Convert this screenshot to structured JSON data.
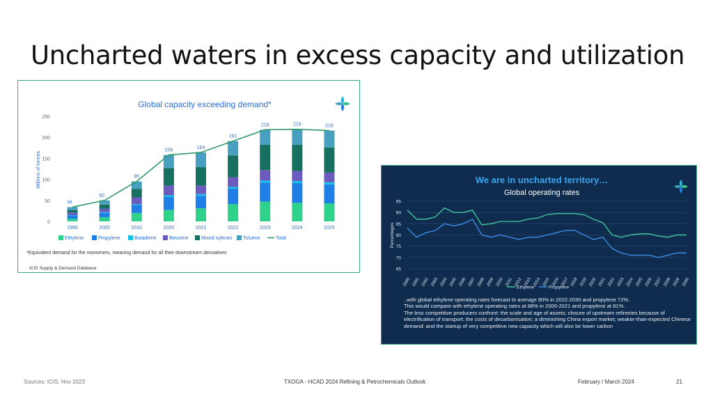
{
  "slide": {
    "title": "Uncharted waters in excess capacity and utilization",
    "footer_sources": "Sources: ICIS, Nov 2023",
    "footer_center": "TXOGA - HCAD 2024 Refining & Petrochemicals Outlook",
    "footer_date": "February / March 2024",
    "page_number": "21"
  },
  "chart_data": [
    {
      "type": "bar",
      "stacked": true,
      "title": "Global capacity exceeding demand*",
      "ylabel": "Millions of tonnes",
      "ylim": [
        0,
        250
      ],
      "yticks": [
        0,
        50,
        100,
        150,
        200,
        250
      ],
      "categories": [
        "1990",
        "2000",
        "2010",
        "2020",
        "2021",
        "2022",
        "2023",
        "2024",
        "2025"
      ],
      "series": [
        {
          "name": "Ethylene",
          "color": "#2fd28a",
          "values": [
            6,
            10,
            20,
            27,
            31,
            41,
            47,
            44,
            43
          ]
        },
        {
          "name": "Propylene",
          "color": "#1f7fe6",
          "values": [
            8,
            10,
            19,
            31,
            30,
            37,
            45,
            47,
            45
          ]
        },
        {
          "name": "Butadiene",
          "color": "#14c4e6",
          "values": [
            1,
            2,
            2,
            4,
            4,
            4,
            5,
            5,
            5
          ]
        },
        {
          "name": "Benzene",
          "color": "#6b5bbf",
          "values": [
            6,
            8,
            16,
            23,
            20,
            23,
            25,
            24,
            23
          ]
        },
        {
          "name": "Mixed xylenes",
          "color": "#17705f",
          "values": [
            6,
            10,
            20,
            42,
            44,
            52,
            60,
            62,
            60
          ]
        },
        {
          "name": "Toluene",
          "color": "#48a0c0",
          "values": [
            7,
            10,
            18,
            31,
            35,
            34,
            36,
            37,
            40
          ]
        }
      ],
      "totals": [
        34,
        50,
        95,
        158,
        164,
        191,
        218,
        219,
        216
      ],
      "total_series": {
        "name": "Total",
        "color": "#2e9a6a"
      },
      "footnote": "*Equivalent demand for the monomers, meaning demand for all their downstream derivatives",
      "source": "ICIS Supply & Demand Database",
      "legend_position": "bottom"
    },
    {
      "type": "line",
      "title": "We are in uncharted territory…",
      "subtitle": "Global operating rates",
      "ylabel": "Percentages",
      "ylim": [
        65,
        95
      ],
      "yticks": [
        65,
        70,
        75,
        80,
        85,
        90,
        95
      ],
      "x": [
        "2000",
        "2001",
        "2002",
        "2003",
        "2004",
        "2005",
        "2006",
        "2007",
        "2008",
        "2009",
        "2010",
        "2011",
        "2012",
        "2013",
        "2014",
        "2015",
        "2016",
        "2017",
        "2018",
        "2019",
        "2020",
        "2021",
        "2022",
        "2023",
        "2024",
        "2025",
        "2026",
        "2027",
        "2028",
        "2029",
        "2030"
      ],
      "series": [
        {
          "name": "Ethylene",
          "color": "#3fc79a",
          "values": [
            91,
            87,
            87,
            88,
            92,
            90,
            90,
            91,
            84.5,
            85,
            86,
            86,
            86,
            87,
            87.5,
            89,
            89.5,
            89.5,
            89.5,
            89,
            87,
            85.5,
            80,
            79,
            80,
            80.5,
            80.5,
            79.5,
            79,
            80,
            80
          ]
        },
        {
          "name": "Propylene",
          "color": "#3a8ee6",
          "values": [
            83,
            79,
            81,
            82,
            85,
            84,
            85,
            87,
            80,
            79,
            80,
            79,
            78,
            79,
            79,
            80,
            81,
            82,
            82,
            80,
            78,
            79,
            74,
            72,
            71,
            71,
            71,
            70,
            71,
            72,
            72
          ]
        }
      ],
      "legend_position": "bottom",
      "notes": [
        "..with global ethylene operating rates forecast to average 80% in 2022-2030 and propylene 72%.",
        "This would compare with ethylene operating rates at 88% in 2000-2021 and propylene at 81%.",
        "The less competitive producers confront: the scale and age of assets; closure of upstream refineries because of electrification of transport; the costs of decarbonisation; a diminishing China export market; weaker-than-expected  Chinese demand: and the startup of very competitive new capacity which will also be lower carbon"
      ]
    }
  ]
}
